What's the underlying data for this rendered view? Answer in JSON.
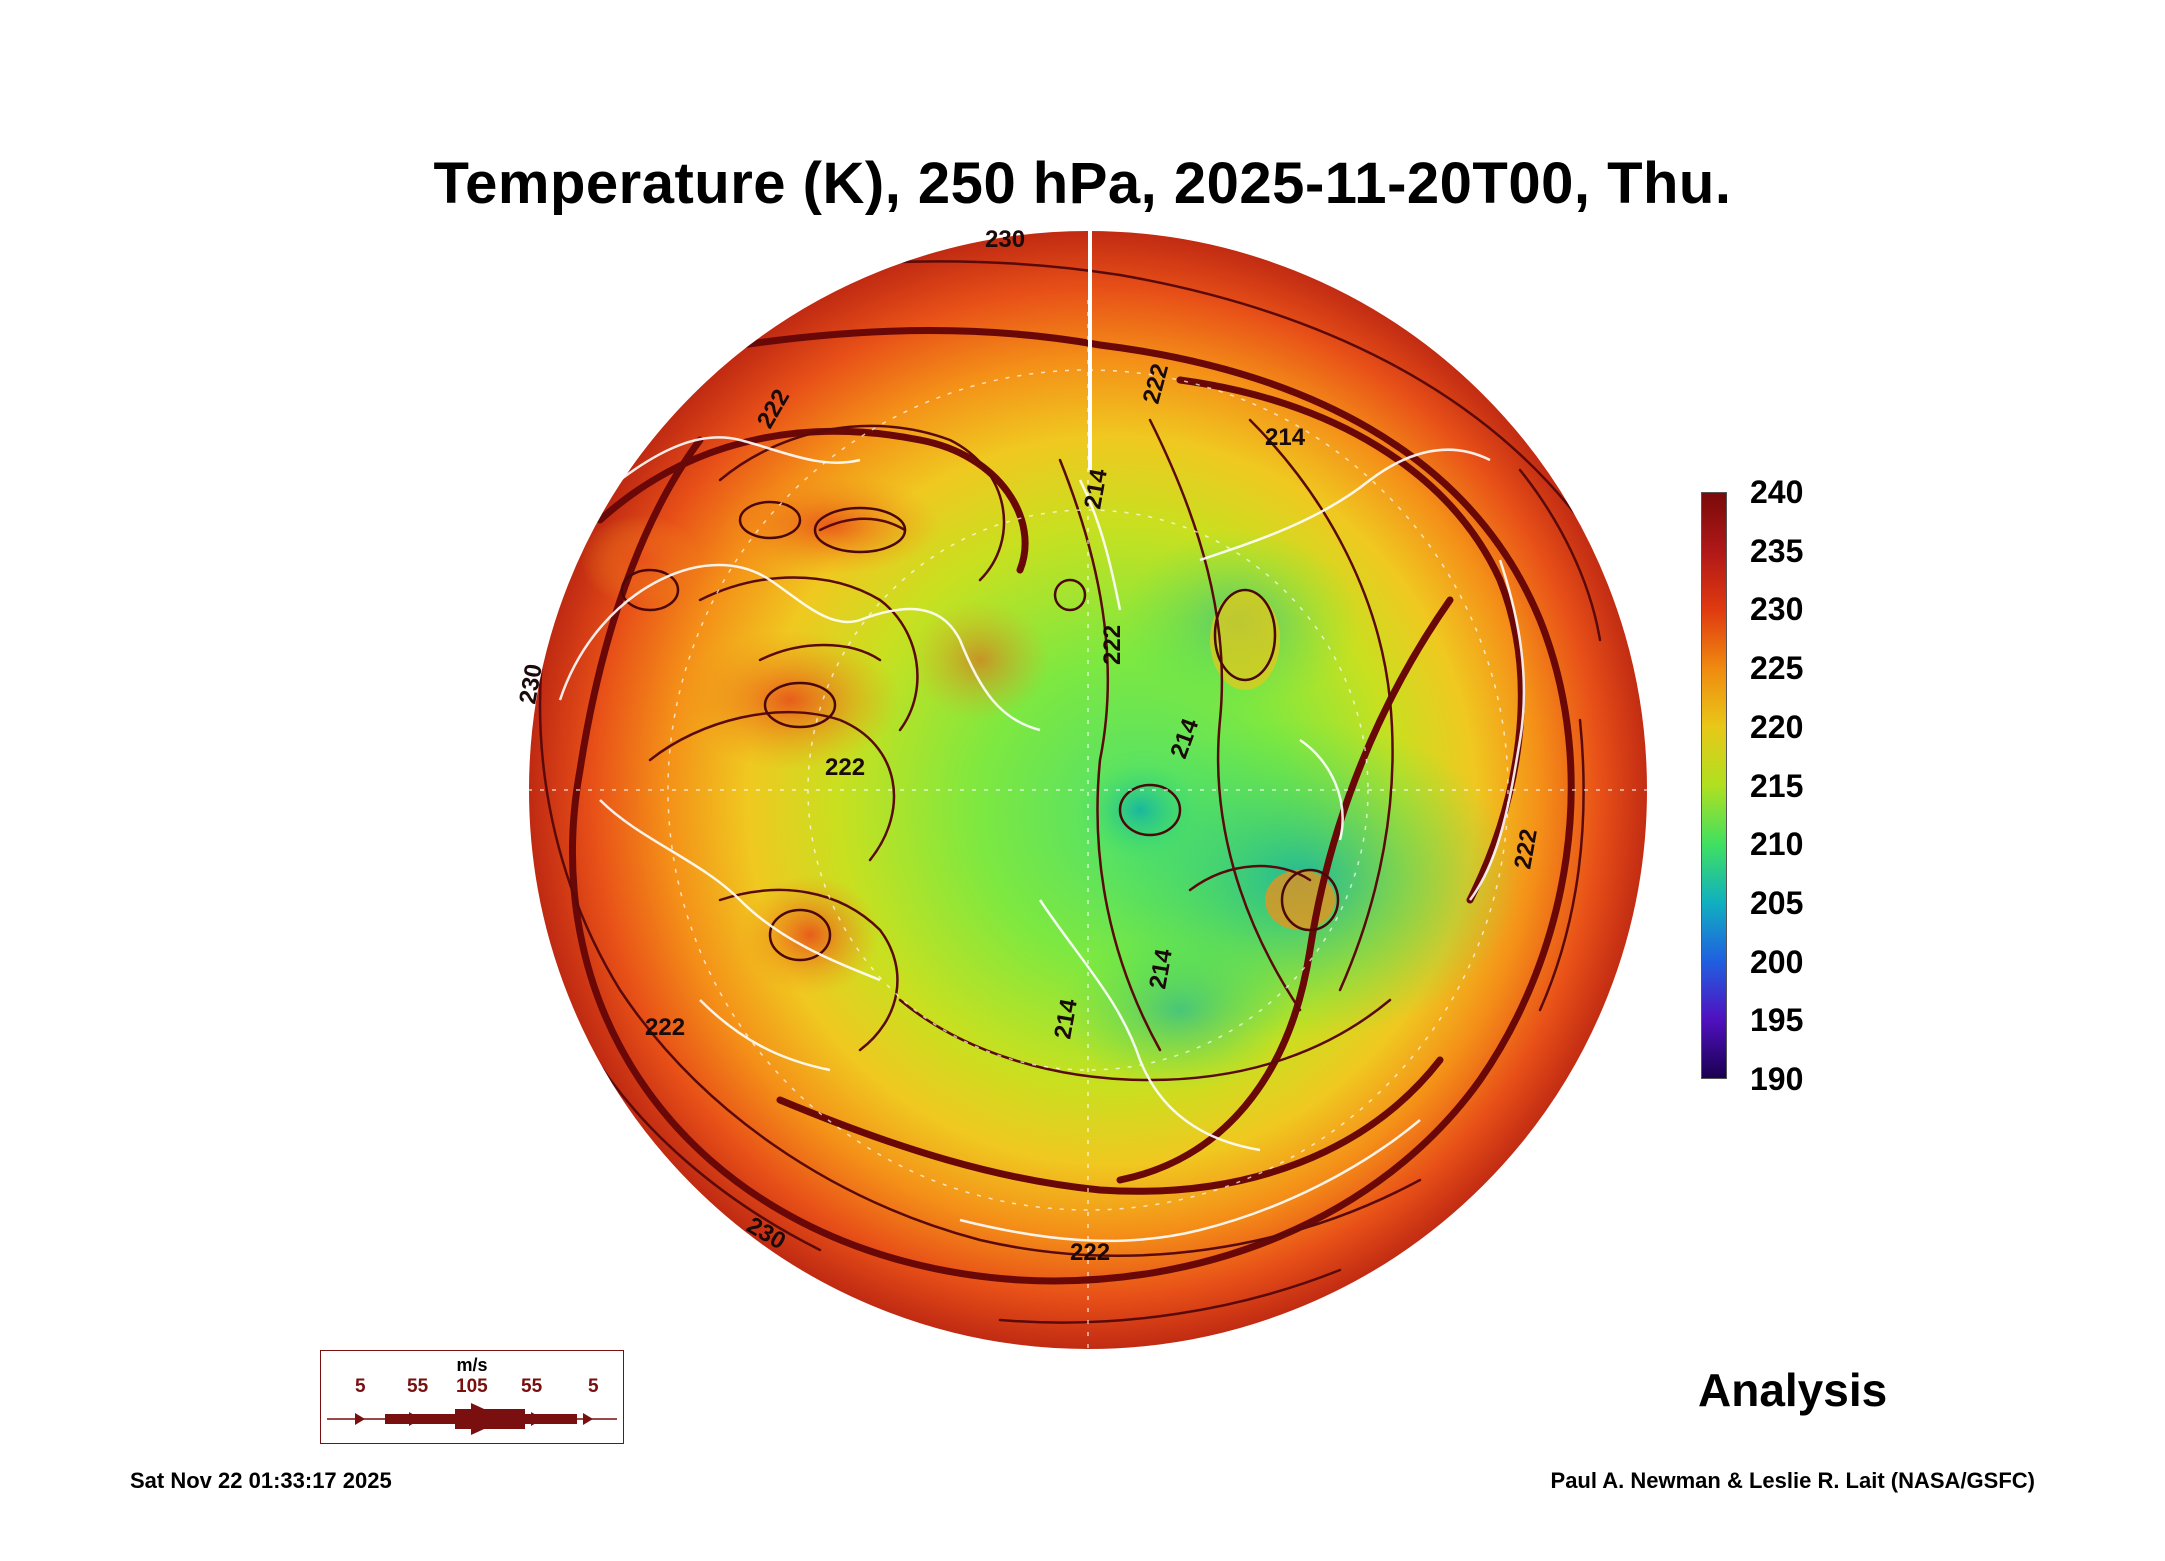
{
  "title": "Temperature (K), 250 hPa, 2025-11-20T00, Thu.",
  "colorbar": {
    "ticks": [
      "240",
      "235",
      "230",
      "225",
      "220",
      "215",
      "210",
      "205",
      "200",
      "195",
      "190"
    ],
    "colors": [
      "#7a0a0a",
      "#b01818",
      "#e03a10",
      "#f08a10",
      "#e8c818",
      "#b0e020",
      "#40e060",
      "#10b0c0",
      "#2060e0",
      "#5010c0",
      "#1a0050"
    ]
  },
  "contour_labels": [
    "230",
    "222",
    "214",
    "214",
    "222",
    "214",
    "222",
    "222",
    "214",
    "214",
    "222",
    "222",
    "230",
    "222",
    "230"
  ],
  "wind_legend": {
    "unit": "m/s",
    "values": [
      "5",
      "55",
      "105",
      "55",
      "5"
    ]
  },
  "analysis_label": "Analysis",
  "timestamp": "Sat Nov 22 01:33:17 2025",
  "credit": "Paul A. Newman & Leslie R. Lait (NASA/GSFC)"
}
